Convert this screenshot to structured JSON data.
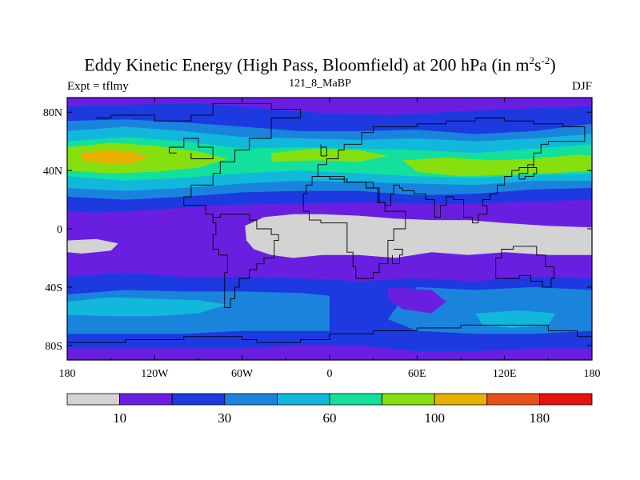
{
  "chart_data": {
    "type": "heatmap",
    "title_main": "Eddy Kinetic Energy (High Pass, Bloomfield) at 200 hPa (in m",
    "title_sup1": "2",
    "title_mid": "s",
    "title_sup2": "-2",
    "title_end": ")",
    "left_subtitle": "Expt = tflmy",
    "center_subtitle": "121_8_MaBP",
    "right_subtitle": "DJF",
    "x_range": [
      -180,
      180
    ],
    "y_range": [
      -90,
      90
    ],
    "x_ticks": [
      {
        "value": -180,
        "label": "180"
      },
      {
        "value": -120,
        "label": "120W"
      },
      {
        "value": -60,
        "label": "60W"
      },
      {
        "value": 0,
        "label": "0"
      },
      {
        "value": 60,
        "label": "60E"
      },
      {
        "value": 120,
        "label": "120E"
      },
      {
        "value": 180,
        "label": "180"
      }
    ],
    "y_ticks": [
      {
        "value": 80,
        "label": "80N"
      },
      {
        "value": 40,
        "label": "40N"
      },
      {
        "value": 0,
        "label": "0"
      },
      {
        "value": -40,
        "label": "40S"
      },
      {
        "value": -80,
        "label": "80S"
      }
    ],
    "levels": [
      10,
      20,
      30,
      45,
      60,
      80,
      100,
      140,
      180
    ],
    "colors": [
      "#d3d3d3",
      "#6a1fe0",
      "#1c3ae0",
      "#1a84dc",
      "#11b8dc",
      "#12e09c",
      "#86e010",
      "#e8b000",
      "#e8501a",
      "#e61010"
    ],
    "colorbar_labels": [
      {
        "index": 1,
        "label": "10"
      },
      {
        "index": 3,
        "label": "30"
      },
      {
        "index": 5,
        "label": "60"
      },
      {
        "index": 7,
        "label": "100"
      },
      {
        "index": 9,
        "label": "180"
      }
    ]
  }
}
